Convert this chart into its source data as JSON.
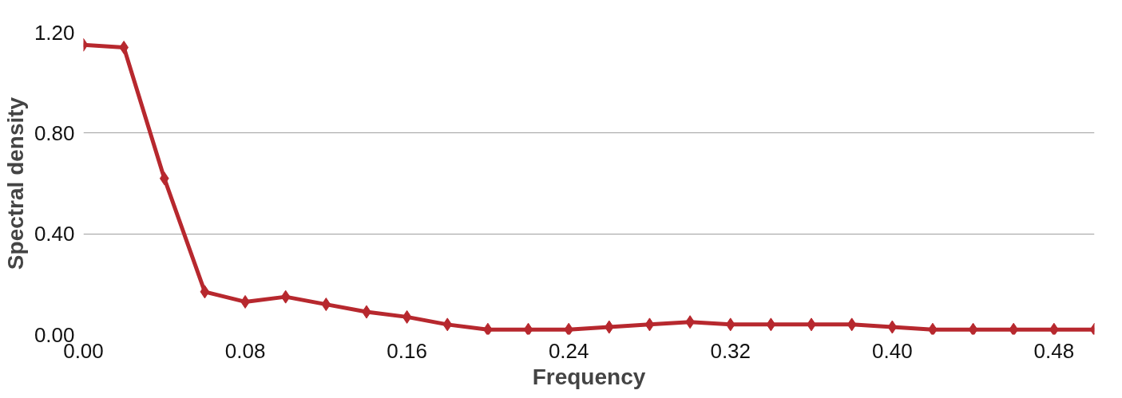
{
  "chart_data": {
    "type": "line",
    "xlabel": "Frequency",
    "ylabel": "Spectral density",
    "x": [
      0.0,
      0.02,
      0.04,
      0.06,
      0.08,
      0.1,
      0.12,
      0.14,
      0.16,
      0.18,
      0.2,
      0.22,
      0.24,
      0.26,
      0.28,
      0.3,
      0.32,
      0.34,
      0.36,
      0.38,
      0.4,
      0.42,
      0.44,
      0.46,
      0.48,
      0.5
    ],
    "series": [
      {
        "color": "#b7282e",
        "values": [
          1.15,
          1.14,
          0.62,
          0.17,
          0.13,
          0.15,
          0.12,
          0.09,
          0.07,
          0.04,
          0.02,
          0.02,
          0.02,
          0.03,
          0.04,
          0.05,
          0.04,
          0.04,
          0.04,
          0.04,
          0.03,
          0.02,
          0.02,
          0.02,
          0.02,
          0.02
        ]
      }
    ],
    "xlim": [
      0,
      0.5
    ],
    "ylim": [
      0,
      1.2
    ],
    "xticks": [
      {
        "value": 0,
        "label": "0.00"
      },
      {
        "value": 0.08,
        "label": "0.08"
      },
      {
        "value": 0.16,
        "label": "0.16"
      },
      {
        "value": 0.24,
        "label": "0.24"
      },
      {
        "value": 0.32,
        "label": "0.32"
      },
      {
        "value": 0.4,
        "label": "0.40"
      },
      {
        "value": 0.48,
        "label": "0.48"
      }
    ],
    "yticks": [
      {
        "value": 0,
        "label": "0.00"
      },
      {
        "value": 0.4,
        "label": "0.40"
      },
      {
        "value": 0.8,
        "label": "0.80"
      },
      {
        "value": 1.2,
        "label": "1.20"
      }
    ],
    "grid": "y",
    "marker": "diamond",
    "line_style": "solid"
  }
}
